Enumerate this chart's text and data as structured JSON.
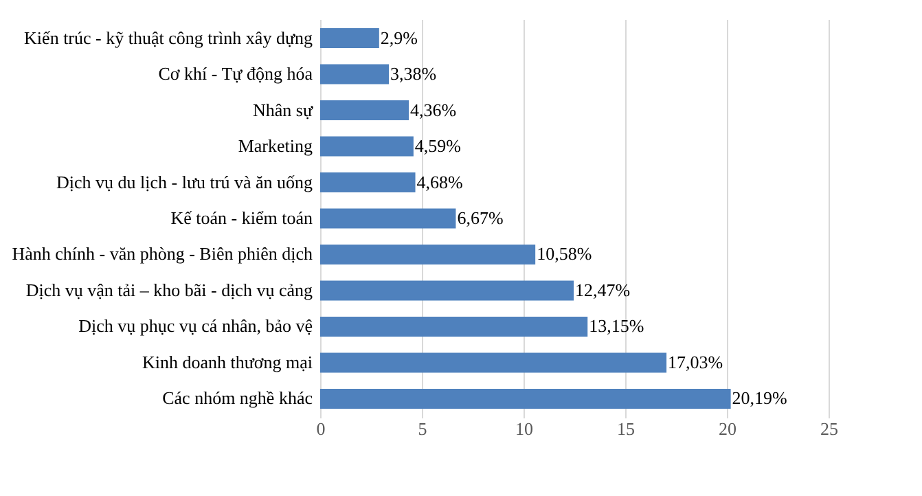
{
  "chart_data": {
    "type": "bar",
    "orientation": "horizontal",
    "categories": [
      "Kiến trúc - kỹ thuật công trình xây dựng",
      "Cơ khí - Tự động hóa",
      "Nhân sự",
      "Marketing",
      "Dịch vụ du lịch - lưu trú và ăn uống",
      "Kế toán - kiểm toán",
      "Hành chính - văn phòng - Biên phiên dịch",
      "Dịch vụ vận tải – kho bãi - dịch vụ cảng",
      "Dịch vụ phục vụ cá nhân, bảo vệ",
      "Kinh doanh thương mại",
      "Các nhóm nghề khác"
    ],
    "values": [
      2.9,
      3.38,
      4.36,
      4.59,
      4.68,
      6.67,
      10.58,
      12.47,
      13.15,
      17.03,
      20.19
    ],
    "value_labels": [
      "2,9%",
      "3,38%",
      "4,36%",
      "4,59%",
      "4,68%",
      "6,67%",
      "10,58%",
      "12,47%",
      "13,15%",
      "17,03%",
      "20,19%"
    ],
    "color": "#4f81bd",
    "xlim": [
      0,
      25
    ],
    "xticks": [
      0,
      5,
      10,
      15,
      20,
      25
    ],
    "grid": "x"
  }
}
